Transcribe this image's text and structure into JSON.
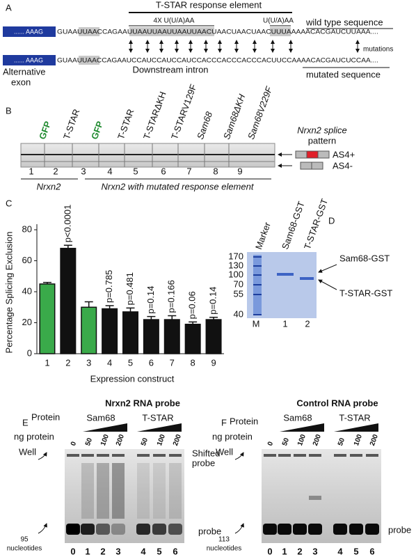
{
  "panel_a": {
    "label": "A",
    "response_element": "T-STAR response element",
    "motif_4x": "4X U(U/A)AA",
    "motif_1x": "U(U/A)AA",
    "wild_type_label": "wild type sequence",
    "mutated_label": "mutated sequence",
    "exon_seq": "...... AAAG",
    "wild_type_seq": "GUAAUUAACCAGAAUUAAUUAAUUAAUUAACUAACUAACUAACUUUAAAAACACGAUCUUAAA....",
    "mutated_seq": "GUAAUUAACCAGAAUCCAUCCAUCCAUCCACCCACCCACCCACUUCCAAAACACGAUCUCCAA....",
    "mutations": "mutations",
    "alternative_exon": [
      "Alternative",
      "exon"
    ],
    "downstream_intron": "Downstream intron"
  },
  "panel_b": {
    "label": "B",
    "lanes": [
      "GFP",
      "T-STAR",
      "GFP",
      "T-STAR",
      "T-STARΔKH",
      "T-STARV129F",
      "Sam68",
      "Sam68ΔKH",
      "Sam68V229F"
    ],
    "lane_numbers": [
      "1",
      "2",
      "3",
      "4",
      "5",
      "6",
      "7",
      "8",
      "9"
    ],
    "group_1": "Nrxn2",
    "group_2": "Nrxn2 with mutated response element",
    "splice_pattern": [
      "Nrxn2 splice",
      "pattern"
    ],
    "isoforms": [
      "AS4+",
      "AS4-"
    ]
  },
  "chart_data": {
    "type": "bar",
    "label": "C",
    "ylabel": "Percentage Splicing Exclusion",
    "xlabel": "Expression construct",
    "categories": [
      "1",
      "2",
      "3",
      "4",
      "5",
      "6",
      "7",
      "8",
      "9"
    ],
    "values": [
      45,
      68,
      30,
      29,
      27,
      22,
      22,
      19,
      22
    ],
    "errors": [
      1,
      2,
      3.5,
      2,
      2.5,
      2,
      2.5,
      1.5,
      1.5
    ],
    "colors": [
      "#3aaa4a",
      "#111111",
      "#3aaa4a",
      "#111111",
      "#111111",
      "#111111",
      "#111111",
      "#111111",
      "#111111"
    ],
    "p_values": [
      null,
      "p<0.0001",
      null,
      "p=0.785",
      "p=0.481",
      "p=0.14",
      "p=0.166",
      "p=0.06",
      "p=0.14"
    ],
    "ylim": [
      0,
      80
    ],
    "yticks": [
      0,
      20,
      40,
      60,
      80
    ]
  },
  "panel_d": {
    "label": "D",
    "lanes": [
      "Marker",
      "Sam68-GST",
      "T-STAR-GST"
    ],
    "markers": [
      "170",
      "130",
      "100",
      "70",
      "55",
      "40"
    ],
    "lane_numbers": [
      "M",
      "1",
      "2"
    ],
    "bands": [
      "Sam68-GST",
      "T-STAR-GST"
    ]
  },
  "panel_e": {
    "label": "E",
    "title": "Nrxn2 RNA probe",
    "protein": "Protein",
    "proteins": [
      "Sam68",
      "T-STAR"
    ],
    "ng_protein": "ng protein",
    "amounts": [
      "0",
      "50",
      "100",
      "200",
      "50",
      "100",
      "200"
    ],
    "well": "Well",
    "shifted": [
      "Shifted",
      "probe"
    ],
    "probe": "probe",
    "size": [
      "95",
      "nucleotides"
    ],
    "lane_numbers": [
      "0",
      "1",
      "2",
      "3",
      "4",
      "5",
      "6"
    ]
  },
  "panel_f": {
    "label": "F",
    "title": "Control RNA probe",
    "protein": "Protein",
    "proteins": [
      "Sam68",
      "T-STAR"
    ],
    "ng_protein": "ng protein",
    "amounts": [
      "0",
      "50",
      "100",
      "200",
      "50",
      "100",
      "200"
    ],
    "well": "Well",
    "probe": "probe",
    "size": [
      "113",
      "nucleotides"
    ],
    "lane_numbers": [
      "0",
      "1",
      "2",
      "3",
      "4",
      "5",
      "6"
    ]
  }
}
